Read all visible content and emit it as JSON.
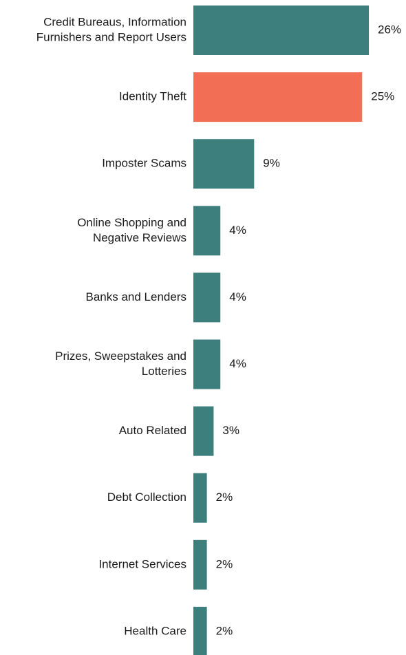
{
  "chart_data": {
    "type": "bar",
    "orientation": "horizontal",
    "categories": [
      [
        "Credit Bureaus, Information",
        "Furnishers and Report Users"
      ],
      [
        "Identity Theft"
      ],
      [
        "Imposter Scams"
      ],
      [
        "Online Shopping and",
        "Negative Reviews"
      ],
      [
        "Banks and Lenders"
      ],
      [
        "Prizes, Sweepstakes and",
        "Lotteries"
      ],
      [
        "Auto Related"
      ],
      [
        "Debt Collection"
      ],
      [
        "Internet Services"
      ],
      [
        "Health Care"
      ]
    ],
    "values": [
      26,
      25,
      9,
      4,
      4,
      4,
      3,
      2,
      2,
      2
    ],
    "value_labels": [
      "26%",
      "25%",
      "9%",
      "4%",
      "4%",
      "4%",
      "3%",
      "2%",
      "2%",
      "2%"
    ],
    "highlight_index": 1,
    "colors": {
      "bar": "#3d7f7c",
      "highlight": "#f26e55",
      "text": "#1a1a1a"
    },
    "grid": false,
    "legend": "none",
    "title": "",
    "xlabel": "",
    "ylabel": ""
  }
}
